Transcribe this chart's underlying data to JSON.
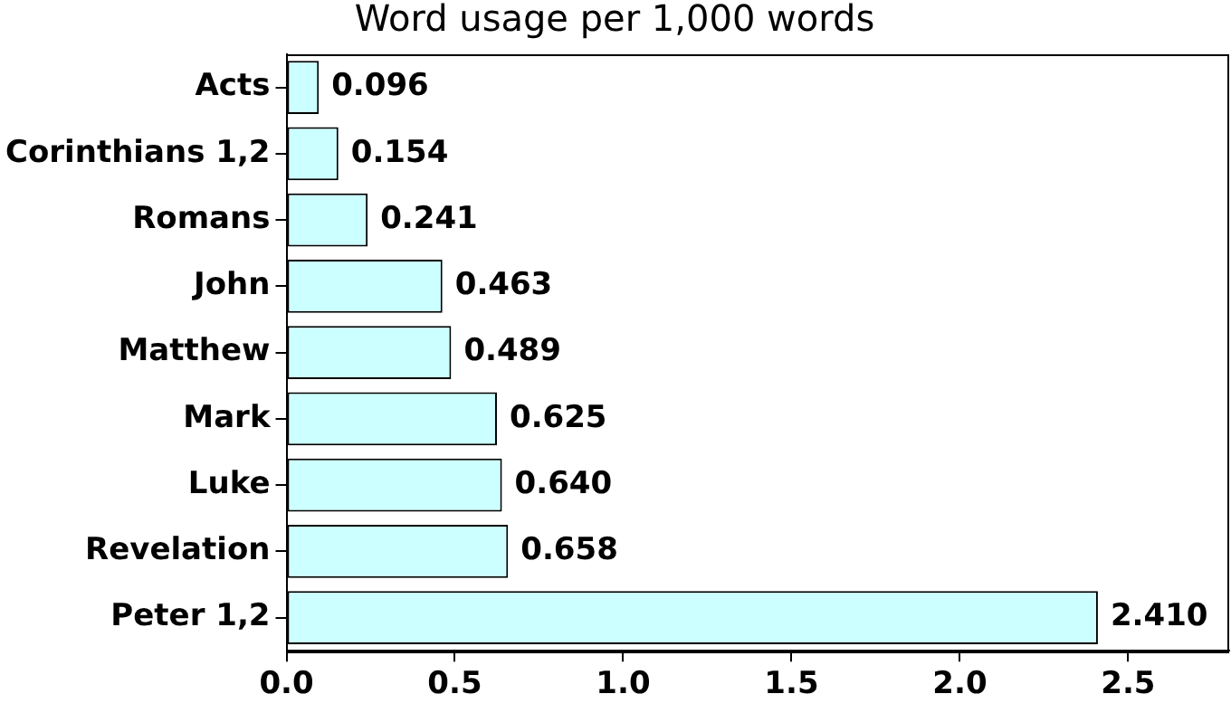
{
  "chart_data": {
    "type": "bar",
    "orientation": "horizontal",
    "title": "Word usage per 1,000 words",
    "categories": [
      "Acts",
      "Corinthians 1,2",
      "Romans",
      "John",
      "Matthew",
      "Mark",
      "Luke",
      "Revelation",
      "Peter 1,2"
    ],
    "values": [
      0.096,
      0.154,
      0.241,
      0.463,
      0.489,
      0.625,
      0.64,
      0.658,
      2.41
    ],
    "value_labels": [
      "0.096",
      "0.154",
      "0.241",
      "0.463",
      "0.489",
      "0.625",
      "0.640",
      "0.658",
      "2.410"
    ],
    "color": "#ccffff",
    "xlim": [
      0,
      2.8
    ],
    "xticks": [
      {
        "value": 0,
        "label": "0.0"
      },
      {
        "value": 0.5,
        "label": "0.5"
      },
      {
        "value": 1,
        "label": "1.0"
      },
      {
        "value": 1.5,
        "label": "1.5"
      },
      {
        "value": 2,
        "label": "2.0"
      },
      {
        "value": 2.5,
        "label": "2.5"
      }
    ],
    "grid": false,
    "legend": false
  }
}
